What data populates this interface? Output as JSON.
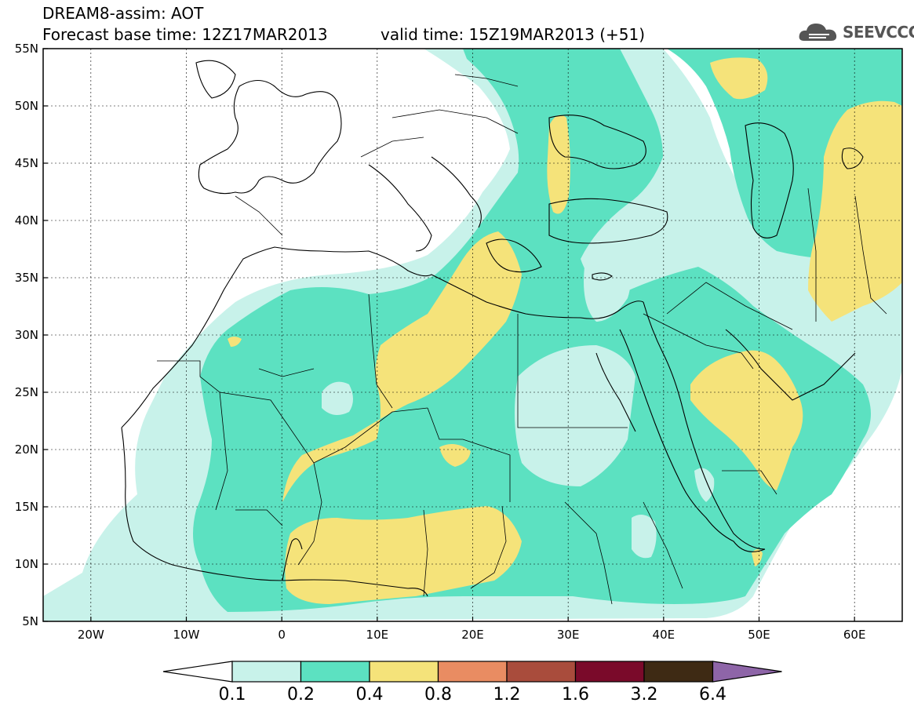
{
  "header": {
    "title": "DREAM8-assim: AOT",
    "base_time": "Forecast base time: 12Z17MAR2013",
    "valid_time": "valid time: 15Z19MAR2013 (+51)",
    "logo_text": "SEEVCCC"
  },
  "map": {
    "lon_range": [
      -25,
      65
    ],
    "lat_range": [
      5,
      55
    ],
    "lat_labels": [
      "55N",
      "50N",
      "45N",
      "40N",
      "35N",
      "30N",
      "25N",
      "20N",
      "15N",
      "10N",
      "5N"
    ],
    "lon_labels": [
      "20W",
      "10W",
      "0",
      "10E",
      "20E",
      "30E",
      "40E",
      "50E",
      "60E"
    ]
  },
  "colorbar": {
    "labels": [
      "0.1",
      "0.2",
      "0.4",
      "0.8",
      "1.2",
      "1.6",
      "3.2",
      "6.4"
    ],
    "colors": [
      "#ffffff",
      "#c8f2ea",
      "#5ce1c1",
      "#f5e37a",
      "#e98c62",
      "#a94c3c",
      "#7a0a2a",
      "#3e2a14",
      "#8e65a8"
    ]
  }
}
